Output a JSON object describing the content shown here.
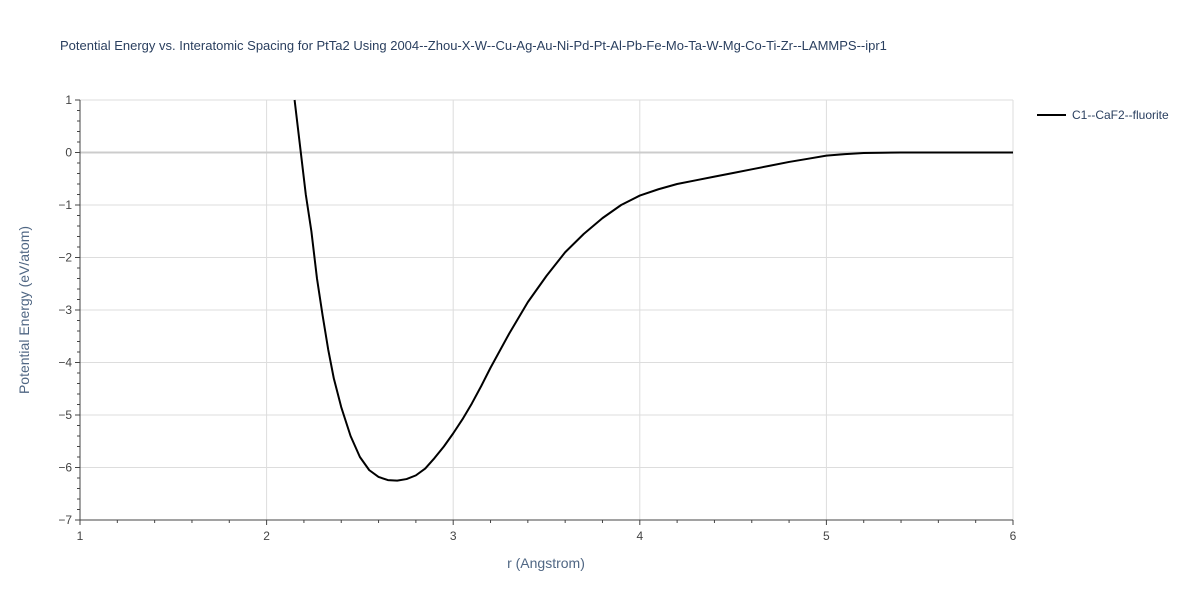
{
  "chart_data": {
    "type": "line",
    "title": "Potential Energy vs. Interatomic Spacing for PtTa2 Using 2004--Zhou-X-W--Cu-Ag-Au-Ni-Pd-Pt-Al-Pb-Fe-Mo-Ta-W-Mg-Co-Ti-Zr--LAMMPS--ipr1",
    "xlabel": "r (Angstrom)",
    "ylabel": "Potential Energy (eV/atom)",
    "xlim": [
      1,
      6
    ],
    "ylim": [
      -7,
      1
    ],
    "x_ticks": [
      1,
      2,
      3,
      4,
      5,
      6
    ],
    "x_tick_labels": [
      "1",
      "2",
      "3",
      "4",
      "5",
      "6"
    ],
    "y_ticks": [
      1,
      0,
      -1,
      -2,
      -3,
      -4,
      -5,
      -6,
      -7
    ],
    "y_tick_labels": [
      "1",
      "0",
      "−1",
      "−2",
      "−3",
      "−4",
      "−5",
      "−6",
      "−7"
    ],
    "grid": true,
    "legend_position": "top-right",
    "line_color": "#000000",
    "series": [
      {
        "name": "C1--CaF2--fluorite",
        "x": [
          2.15,
          2.18,
          2.21,
          2.24,
          2.27,
          2.3,
          2.33,
          2.36,
          2.4,
          2.45,
          2.5,
          2.55,
          2.6,
          2.65,
          2.7,
          2.75,
          2.8,
          2.85,
          2.9,
          2.95,
          3.0,
          3.05,
          3.1,
          3.15,
          3.2,
          3.3,
          3.4,
          3.5,
          3.6,
          3.7,
          3.8,
          3.9,
          4.0,
          4.1,
          4.2,
          4.3,
          4.4,
          4.5,
          4.6,
          4.7,
          4.8,
          4.9,
          5.0,
          5.1,
          5.2,
          5.3,
          5.4,
          5.6,
          5.8,
          6.0
        ],
        "y": [
          1.0,
          0.1,
          -0.8,
          -1.5,
          -2.4,
          -3.1,
          -3.75,
          -4.3,
          -4.85,
          -5.4,
          -5.8,
          -6.05,
          -6.18,
          -6.24,
          -6.25,
          -6.22,
          -6.15,
          -6.02,
          -5.82,
          -5.6,
          -5.35,
          -5.08,
          -4.78,
          -4.45,
          -4.1,
          -3.45,
          -2.85,
          -2.35,
          -1.9,
          -1.55,
          -1.25,
          -1.0,
          -0.82,
          -0.7,
          -0.6,
          -0.53,
          -0.46,
          -0.39,
          -0.32,
          -0.25,
          -0.18,
          -0.12,
          -0.06,
          -0.03,
          -0.01,
          -0.005,
          0.0,
          0.0,
          0.0,
          0.0
        ]
      }
    ]
  }
}
